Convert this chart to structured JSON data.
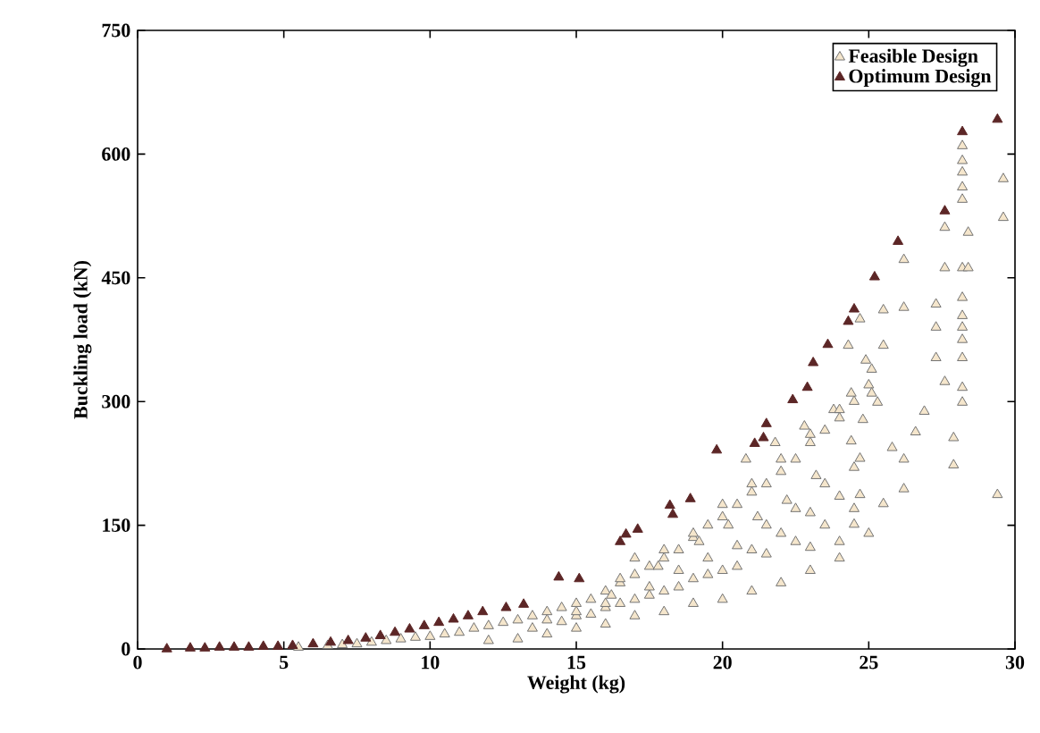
{
  "chart_data": {
    "type": "scatter",
    "xlabel": "Weight (kg)",
    "ylabel": "Buckling load (kN)",
    "xlim": [
      0,
      30
    ],
    "ylim": [
      0,
      750
    ],
    "xticks": [
      0,
      5,
      10,
      15,
      20,
      25,
      30
    ],
    "yticks": [
      0,
      150,
      300,
      450,
      600,
      750
    ],
    "legend": "top right",
    "marker": "triangle",
    "grid": false,
    "series": [
      {
        "name": "Feasible Design",
        "color": "#f5e6cc",
        "x": [
          5.5,
          6.5,
          7,
          7.5,
          8,
          8.5,
          9,
          9.5,
          10,
          10.5,
          11,
          11.5,
          12,
          12.5,
          13,
          13.5,
          14,
          14.5,
          15,
          15.5,
          16,
          16.5,
          17,
          17.5,
          18,
          18.5,
          19,
          19.5,
          20,
          20.5,
          21,
          21.5,
          22,
          22.5,
          23,
          23.5,
          24,
          24.5,
          25,
          12,
          13,
          14,
          15,
          16,
          17,
          18,
          19,
          20,
          21,
          22,
          23,
          24,
          25,
          13.5,
          14.5,
          15.5,
          16.5,
          17.5,
          18.5,
          19.5,
          20.5,
          21.5,
          22.5,
          23.5,
          24.5,
          15,
          16,
          17,
          18,
          19,
          20,
          21,
          22,
          23,
          24,
          16.2,
          17.8,
          19.2,
          20.2,
          21.2,
          22.2,
          23.2,
          20.8,
          21.8,
          22.8,
          23.8,
          29.6,
          29.6,
          29.4,
          28.2,
          28.2,
          28.2,
          28.2,
          28.2,
          28.2,
          28.2,
          28.2,
          28.2,
          28.2,
          28.2,
          28.2,
          28.2,
          28.4,
          28.4,
          27.6,
          27.6,
          27.3,
          27.3,
          27.3,
          27.6,
          27.9,
          27.9,
          26.9,
          26.6,
          26.2,
          26.2,
          26.2,
          26.2,
          25.8,
          25.5,
          25.5,
          25.5,
          25.1,
          25.3,
          25.1,
          24.9,
          24.8,
          24.7,
          24.5,
          24,
          23,
          24.3,
          24.4,
          24.4,
          24.7,
          24.7,
          17,
          18,
          19,
          20,
          21,
          22,
          23,
          24,
          18.5,
          19.5,
          20.5,
          21.5,
          22.5,
          23.5,
          24.5,
          16.5,
          17.5,
          14,
          15,
          16
        ],
        "values": [
          2,
          4,
          5,
          6,
          8,
          10,
          12,
          14,
          15,
          18,
          20,
          25,
          28,
          32,
          35,
          40,
          45,
          50,
          55,
          60,
          70,
          80,
          90,
          100,
          110,
          120,
          135,
          150,
          160,
          175,
          190,
          200,
          215,
          230,
          250,
          265,
          280,
          300,
          320,
          10,
          12,
          18,
          25,
          30,
          40,
          45,
          55,
          60,
          70,
          80,
          95,
          110,
          140,
          25,
          33,
          42,
          55,
          65,
          75,
          90,
          100,
          115,
          130,
          150,
          170,
          40,
          50,
          60,
          70,
          85,
          95,
          120,
          140,
          165,
          185,
          65,
          100,
          130,
          150,
          160,
          180,
          210,
          230,
          250,
          270,
          290,
          570,
          523,
          187,
          610,
          592,
          578,
          560,
          545,
          462,
          426,
          404,
          390,
          375,
          353,
          317,
          299,
          505,
          462,
          511,
          462,
          418,
          390,
          353,
          324,
          256,
          223,
          288,
          263,
          472,
          414,
          230,
          194,
          244,
          411,
          368,
          176,
          339,
          299,
          310,
          350,
          278,
          400,
          151,
          130,
          123,
          368,
          310,
          252,
          231,
          187,
          110,
          120,
          140,
          175,
          200,
          230,
          260,
          290,
          95,
          110,
          125,
          150,
          170,
          200,
          220,
          85,
          75,
          35,
          45,
          55
        ]
      },
      {
        "name": "Optimum Design",
        "color": "#5c2626",
        "x": [
          1,
          1.8,
          2.3,
          2.8,
          3.3,
          3.8,
          4.3,
          4.8,
          5.3,
          6,
          6.6,
          7.2,
          7.8,
          8.3,
          8.8,
          9.3,
          9.8,
          10.3,
          10.8,
          11.3,
          11.8,
          12.6,
          13.2,
          14.4,
          15.1,
          16.5,
          16.7,
          17.1,
          18.2,
          18.3,
          18.9,
          19.8,
          21.1,
          21.4,
          21.5,
          22.4,
          22.9,
          23.1,
          23.6,
          24.3,
          24.5,
          25.2,
          26,
          27.6,
          28.2,
          29.4
        ],
        "values": [
          0,
          1,
          1,
          2,
          2,
          2,
          3,
          3,
          4,
          6,
          8,
          10,
          13,
          16,
          20,
          24,
          28,
          32,
          36,
          40,
          45,
          50,
          54,
          87,
          85,
          130,
          139,
          145,
          174,
          163,
          182,
          241,
          249,
          256,
          273,
          302,
          317,
          347,
          369,
          397,
          412,
          451,
          494,
          531,
          627,
          642
        ]
      }
    ]
  }
}
